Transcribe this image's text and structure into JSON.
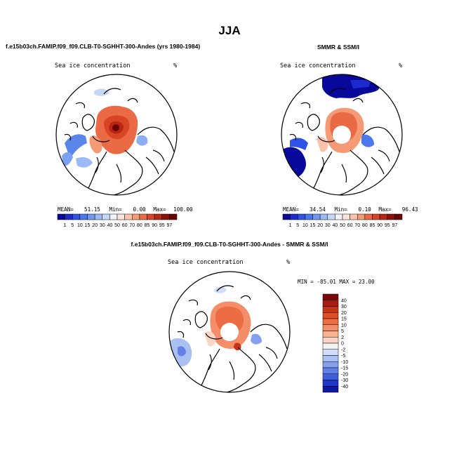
{
  "title": "JJA",
  "panels": {
    "model": {
      "heading": "f.e15b03ch.FAMIP.f09_f09.CLB-T0-SGHHT-300-Andes (yrs 1980-1984)",
      "field_label": "Sea ice concentration",
      "units": "%",
      "stats": {
        "mean_label": "MEAN=",
        "mean": "51.15",
        "min_label": "Min=",
        "min": "0.00",
        "max_label": "Max=",
        "max": "100.00"
      }
    },
    "obs": {
      "heading": "SMMR & SSM/I",
      "field_label": "Sea ice concentration",
      "units": "%",
      "stats": {
        "mean_label": "MEAN=",
        "mean": "34.54",
        "min_label": "Min=",
        "min": "0.10",
        "max_label": "Max=",
        "max": "96.43"
      }
    },
    "diff": {
      "heading": "f.e15b03ch.FAMIP.f09_f09.CLB-T0-SGHHT-300-Andes - SMMR & SSM/I",
      "field_label": "Sea ice concentration",
      "units": "%",
      "range_text": "MIN = -85.01 MAX =  23.00"
    }
  },
  "colorbar_h": {
    "labels": [
      "1",
      "5",
      "10",
      "15",
      "20",
      "30",
      "40",
      "50",
      "60",
      "70",
      "80",
      "85",
      "90",
      "95",
      "97"
    ],
    "colors": [
      "#08089a",
      "#1c2bd0",
      "#3152e6",
      "#4c78ee",
      "#6e98f2",
      "#9cbaf6",
      "#c6d8fa",
      "#f0f3fb",
      "#fbe4da",
      "#fac3a9",
      "#f49a74",
      "#ea6a45",
      "#d84524",
      "#b92612",
      "#8a1008",
      "#6a0404"
    ]
  },
  "colorbar_v": {
    "labels": [
      "40",
      "30",
      "20",
      "15",
      "10",
      "5",
      "2",
      "0",
      "-2",
      "-5",
      "-10",
      "-15",
      "-20",
      "-30",
      "-40"
    ],
    "colors": [
      "#7a0808",
      "#a51c10",
      "#c83318",
      "#e04e26",
      "#ec6c44",
      "#f48e68",
      "#f8b292",
      "#fcd6c2",
      "#f3f3f3",
      "#d0dcf8",
      "#aac0f3",
      "#84a0ee",
      "#6080e8",
      "#3e5ede",
      "#2038c8",
      "#0d17a0"
    ]
  }
}
